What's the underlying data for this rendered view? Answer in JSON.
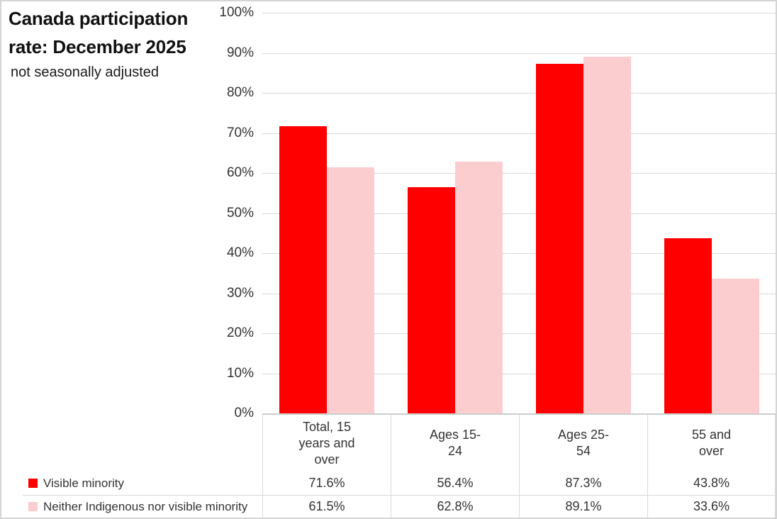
{
  "title_lines": [
    "Canada participation",
    "rate: December 2025"
  ],
  "subtitle": "not seasonally adjusted",
  "colors": {
    "series1": "#fe0000",
    "series2": "#fccdcf",
    "gridline": "#d9d9d9",
    "axis_line": "#cdcdcd",
    "table_border": "#d9d9d9",
    "text": "#333333"
  },
  "chart_data": {
    "type": "bar",
    "title": "Canada participation rate: December 2025",
    "subtitle": "not seasonally adjusted",
    "categories": [
      "Total, 15 years and over",
      "Ages 15-24",
      "Ages 25-54",
      "55 and over"
    ],
    "category_label_lines": [
      [
        "Total, 15",
        "years and",
        "over"
      ],
      [
        "Ages 15-",
        "24"
      ],
      [
        "Ages 25-",
        "54"
      ],
      [
        "55 and",
        "over"
      ]
    ],
    "series": [
      {
        "name": "Visible minority",
        "color": "#fe0000",
        "values": [
          71.6,
          56.4,
          87.3,
          43.8
        ],
        "labels": [
          "71.6%",
          "56.4%",
          "87.3%",
          "43.8%"
        ]
      },
      {
        "name": "Neither Indigenous nor visible minority",
        "color": "#fccdcf",
        "values": [
          61.5,
          62.8,
          89.1,
          33.6
        ],
        "labels": [
          "61.5%",
          "62.8%",
          "89.1%",
          "33.6%"
        ]
      }
    ],
    "y_axis": {
      "min": 0,
      "max": 100,
      "step": 10,
      "tick_labels": [
        "0%",
        "10%",
        "20%",
        "30%",
        "40%",
        "50%",
        "60%",
        "70%",
        "80%",
        "90%",
        "100%"
      ],
      "format": "percent"
    },
    "grid": true,
    "legend_position": "table-left",
    "data_table_shown": true
  }
}
